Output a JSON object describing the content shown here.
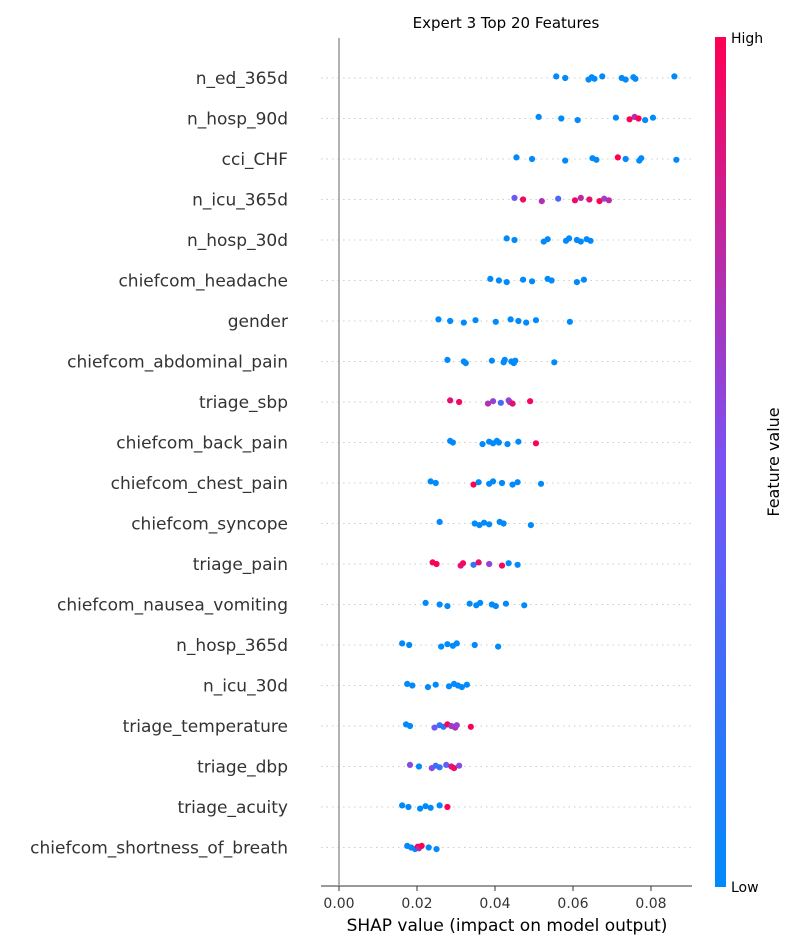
{
  "chart_data": {
    "type": "scatter",
    "title": "Expert 3 Top 20 Features",
    "xlabel": "SHAP value (impact on model output)",
    "xlim": [
      -0.004,
      0.09
    ],
    "xticks": [
      0.0,
      0.02,
      0.04,
      0.06,
      0.08
    ],
    "xtick_labels": [
      "0.00",
      "0.02",
      "0.04",
      "0.06",
      "0.08"
    ],
    "colorbar": {
      "label": "Feature value",
      "high_label": "High",
      "low_label": "Low",
      "low_color": "#008afb",
      "high_color": "#ff0052"
    },
    "features": [
      {
        "name": "n_ed_365d",
        "points": [
          [
            0.0557,
            0
          ],
          [
            0.058,
            0
          ],
          [
            0.064,
            0
          ],
          [
            0.0648,
            0
          ],
          [
            0.0655,
            0
          ],
          [
            0.0675,
            0
          ],
          [
            0.0725,
            0
          ],
          [
            0.0735,
            0
          ],
          [
            0.0755,
            0
          ],
          [
            0.076,
            0
          ],
          [
            0.086,
            0
          ]
        ]
      },
      {
        "name": "n_hosp_90d",
        "points": [
          [
            0.0512,
            0
          ],
          [
            0.057,
            0
          ],
          [
            0.0612,
            0
          ],
          [
            0.071,
            0
          ],
          [
            0.0745,
            1
          ],
          [
            0.0758,
            0.7
          ],
          [
            0.0768,
            1
          ],
          [
            0.0785,
            0
          ],
          [
            0.0805,
            0
          ]
        ]
      },
      {
        "name": "cci_CHF",
        "points": [
          [
            0.0455,
            0
          ],
          [
            0.0495,
            0
          ],
          [
            0.058,
            0
          ],
          [
            0.065,
            0
          ],
          [
            0.066,
            0
          ],
          [
            0.0715,
            1
          ],
          [
            0.0735,
            0
          ],
          [
            0.077,
            0
          ],
          [
            0.0775,
            0
          ],
          [
            0.0865,
            0
          ]
        ]
      },
      {
        "name": "n_icu_365d",
        "points": [
          [
            0.045,
            0.45
          ],
          [
            0.0472,
            0.95
          ],
          [
            0.052,
            0.7
          ],
          [
            0.0562,
            0.3
          ],
          [
            0.0605,
            0.95
          ],
          [
            0.062,
            0.75
          ],
          [
            0.0642,
            0.9
          ],
          [
            0.0668,
            1
          ],
          [
            0.068,
            0.6
          ],
          [
            0.0692,
            0.75
          ]
        ]
      },
      {
        "name": "n_hosp_30d",
        "points": [
          [
            0.043,
            0
          ],
          [
            0.045,
            0
          ],
          [
            0.0525,
            0
          ],
          [
            0.0535,
            0
          ],
          [
            0.0582,
            0
          ],
          [
            0.059,
            0
          ],
          [
            0.061,
            0
          ],
          [
            0.062,
            0
          ],
          [
            0.0635,
            0
          ],
          [
            0.0645,
            0
          ]
        ]
      },
      {
        "name": "chiefcom_headache",
        "points": [
          [
            0.0388,
            0
          ],
          [
            0.041,
            0
          ],
          [
            0.043,
            0
          ],
          [
            0.0472,
            0
          ],
          [
            0.0495,
            0
          ],
          [
            0.0535,
            0
          ],
          [
            0.0545,
            0
          ],
          [
            0.061,
            0
          ],
          [
            0.0628,
            0
          ]
        ]
      },
      {
        "name": "gender",
        "points": [
          [
            0.0255,
            0
          ],
          [
            0.0285,
            0
          ],
          [
            0.032,
            0
          ],
          [
            0.035,
            0
          ],
          [
            0.0402,
            0
          ],
          [
            0.044,
            0
          ],
          [
            0.046,
            0
          ],
          [
            0.048,
            0
          ],
          [
            0.0505,
            0
          ],
          [
            0.0592,
            0
          ]
        ]
      },
      {
        "name": "chiefcom_abdominal_pain",
        "points": [
          [
            0.0278,
            0
          ],
          [
            0.032,
            0
          ],
          [
            0.0325,
            0
          ],
          [
            0.0392,
            0
          ],
          [
            0.0422,
            0
          ],
          [
            0.0425,
            0
          ],
          [
            0.0442,
            0
          ],
          [
            0.0448,
            0
          ],
          [
            0.0452,
            0
          ],
          [
            0.0552,
            0
          ]
        ]
      },
      {
        "name": "triage_sbp",
        "points": [
          [
            0.0285,
            0.9
          ],
          [
            0.0308,
            0.95
          ],
          [
            0.0382,
            0.7
          ],
          [
            0.0395,
            0.6
          ],
          [
            0.0415,
            0.3
          ],
          [
            0.0435,
            0.55
          ],
          [
            0.0438,
            0.65
          ],
          [
            0.0445,
            0.9
          ],
          [
            0.049,
            0.95
          ]
        ]
      },
      {
        "name": "chiefcom_back_pain",
        "points": [
          [
            0.0285,
            0
          ],
          [
            0.0292,
            0
          ],
          [
            0.0368,
            0
          ],
          [
            0.0385,
            0
          ],
          [
            0.0395,
            0
          ],
          [
            0.0405,
            0
          ],
          [
            0.041,
            0
          ],
          [
            0.0432,
            0
          ],
          [
            0.046,
            0
          ],
          [
            0.0505,
            1
          ]
        ]
      },
      {
        "name": "chiefcom_chest_pain",
        "points": [
          [
            0.0235,
            0
          ],
          [
            0.0248,
            0
          ],
          [
            0.0345,
            1
          ],
          [
            0.0358,
            0
          ],
          [
            0.0385,
            0
          ],
          [
            0.0395,
            0
          ],
          [
            0.0418,
            0
          ],
          [
            0.0445,
            0
          ],
          [
            0.0458,
            0
          ],
          [
            0.0518,
            0
          ]
        ]
      },
      {
        "name": "chiefcom_syncope",
        "points": [
          [
            0.0258,
            0
          ],
          [
            0.0348,
            0
          ],
          [
            0.036,
            0
          ],
          [
            0.0372,
            0
          ],
          [
            0.0385,
            0
          ],
          [
            0.0412,
            0
          ],
          [
            0.0422,
            0
          ],
          [
            0.0492,
            0
          ]
        ]
      },
      {
        "name": "triage_pain",
        "points": [
          [
            0.024,
            0.95
          ],
          [
            0.025,
            1
          ],
          [
            0.0312,
            0.9
          ],
          [
            0.0318,
            0.95
          ],
          [
            0.0345,
            0.2
          ],
          [
            0.0358,
            0.9
          ],
          [
            0.0385,
            0.6
          ],
          [
            0.0418,
            0.95
          ],
          [
            0.0435,
            0
          ],
          [
            0.0458,
            0
          ]
        ]
      },
      {
        "name": "chiefcom_nausea_vomiting",
        "points": [
          [
            0.0222,
            0
          ],
          [
            0.0258,
            0
          ],
          [
            0.0278,
            0
          ],
          [
            0.0335,
            0
          ],
          [
            0.0352,
            0
          ],
          [
            0.0362,
            0
          ],
          [
            0.0392,
            0
          ],
          [
            0.0402,
            0
          ],
          [
            0.0428,
            0
          ],
          [
            0.0475,
            0
          ]
        ]
      },
      {
        "name": "n_hosp_365d",
        "points": [
          [
            0.0162,
            0
          ],
          [
            0.018,
            0
          ],
          [
            0.0262,
            0
          ],
          [
            0.0278,
            0
          ],
          [
            0.0292,
            0
          ],
          [
            0.0302,
            0
          ],
          [
            0.0348,
            0
          ],
          [
            0.0408,
            0
          ]
        ]
      },
      {
        "name": "n_icu_30d",
        "points": [
          [
            0.0175,
            0
          ],
          [
            0.0188,
            0
          ],
          [
            0.0228,
            0
          ],
          [
            0.0248,
            0
          ],
          [
            0.0282,
            0
          ],
          [
            0.0295,
            0
          ],
          [
            0.0305,
            0
          ],
          [
            0.0315,
            0
          ],
          [
            0.0328,
            0
          ]
        ]
      },
      {
        "name": "triage_temperature",
        "points": [
          [
            0.0172,
            0
          ],
          [
            0.0182,
            0
          ],
          [
            0.0245,
            0.45
          ],
          [
            0.0258,
            0.2
          ],
          [
            0.0268,
            0.15
          ],
          [
            0.0278,
            1
          ],
          [
            0.0288,
            0.65
          ],
          [
            0.0298,
            0.7
          ],
          [
            0.0302,
            0.6
          ],
          [
            0.0338,
            1
          ]
        ]
      },
      {
        "name": "triage_dbp",
        "points": [
          [
            0.0182,
            0.55
          ],
          [
            0.0205,
            0
          ],
          [
            0.0238,
            0.55
          ],
          [
            0.0248,
            0.25
          ],
          [
            0.0258,
            0.2
          ],
          [
            0.0275,
            0.4
          ],
          [
            0.0288,
            0.85
          ],
          [
            0.0295,
            0.95
          ],
          [
            0.0308,
            0.55
          ]
        ]
      },
      {
        "name": "triage_acuity",
        "points": [
          [
            0.0162,
            0
          ],
          [
            0.0178,
            0
          ],
          [
            0.0208,
            0
          ],
          [
            0.0222,
            0
          ],
          [
            0.0235,
            0
          ],
          [
            0.0258,
            0
          ],
          [
            0.0278,
            1
          ]
        ]
      },
      {
        "name": "chiefcom_shortness_of_breath",
        "points": [
          [
            0.0175,
            0
          ],
          [
            0.0185,
            0
          ],
          [
            0.0195,
            0
          ],
          [
            0.0202,
            1
          ],
          [
            0.0205,
            0.7
          ],
          [
            0.0212,
            1
          ],
          [
            0.023,
            0
          ],
          [
            0.025,
            0
          ]
        ]
      }
    ]
  }
}
